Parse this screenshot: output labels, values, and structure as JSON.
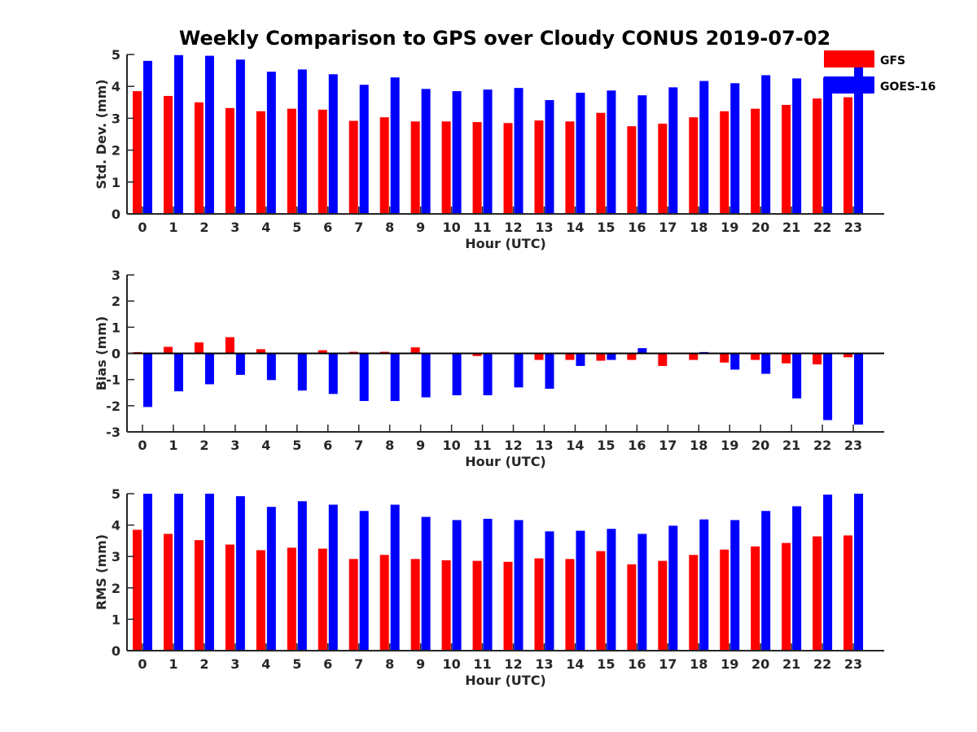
{
  "title": "Weekly Comparison to GPS over Cloudy CONUS 2019-07-02",
  "legend": [
    {
      "label": "GFS",
      "color": "#ff0000"
    },
    {
      "label": "GOES-16",
      "color": "#0000ff"
    }
  ],
  "chart_data": [
    {
      "type": "bar",
      "title": "",
      "xlabel": "Hour (UTC)",
      "ylabel": "Std. Dev. (mm)",
      "ylim": [
        0,
        5
      ],
      "yticks": [
        "0",
        "1",
        "2",
        "3",
        "4",
        "5"
      ],
      "categories": [
        "0",
        "1",
        "2",
        "3",
        "4",
        "5",
        "6",
        "7",
        "8",
        "9",
        "10",
        "11",
        "12",
        "13",
        "14",
        "15",
        "16",
        "17",
        "18",
        "19",
        "20",
        "21",
        "22",
        "23"
      ],
      "series": [
        {
          "name": "GFS",
          "color": "#ff0000",
          "values": [
            3.85,
            3.7,
            3.5,
            3.32,
            3.22,
            3.3,
            3.27,
            2.92,
            3.03,
            2.9,
            2.9,
            2.88,
            2.85,
            2.93,
            2.9,
            3.17,
            2.75,
            2.83,
            3.03,
            3.22,
            3.3,
            3.42,
            3.62,
            3.66
          ]
        },
        {
          "name": "GOES-16",
          "color": "#0000ff",
          "values": [
            4.8,
            4.98,
            4.96,
            4.84,
            4.46,
            4.53,
            4.38,
            4.05,
            4.28,
            3.92,
            3.85,
            3.9,
            3.95,
            3.57,
            3.8,
            3.87,
            3.72,
            3.97,
            4.17,
            4.1,
            4.35,
            4.25,
            4.28,
            4.62
          ]
        }
      ],
      "grid": false,
      "legend": "top-right"
    },
    {
      "type": "bar",
      "title": "",
      "xlabel": "Hour (UTC)",
      "ylabel": "Bias (mm)",
      "ylim": [
        -3,
        3
      ],
      "yticks": [
        "-3",
        "-2",
        "-1",
        "0",
        "1",
        "2",
        "3"
      ],
      "categories": [
        "0",
        "1",
        "2",
        "3",
        "4",
        "5",
        "6",
        "7",
        "8",
        "9",
        "10",
        "11",
        "12",
        "13",
        "14",
        "15",
        "16",
        "17",
        "18",
        "19",
        "20",
        "21",
        "22",
        "23"
      ],
      "series": [
        {
          "name": "GFS",
          "color": "#ff0000",
          "values": [
            0.05,
            0.25,
            0.42,
            0.62,
            0.16,
            0.03,
            0.12,
            0.06,
            0.06,
            0.23,
            0.0,
            -0.1,
            0.0,
            -0.25,
            -0.25,
            -0.28,
            -0.25,
            -0.48,
            -0.25,
            -0.35,
            -0.25,
            -0.38,
            -0.42,
            -0.15
          ]
        },
        {
          "name": "GOES-16",
          "color": "#0000ff",
          "values": [
            -2.05,
            -1.45,
            -1.18,
            -0.82,
            -1.02,
            -1.42,
            -1.55,
            -1.82,
            -1.82,
            -1.68,
            -1.6,
            -1.6,
            -1.3,
            -1.35,
            -0.48,
            -0.25,
            0.2,
            -0.03,
            0.05,
            -0.62,
            -0.78,
            -1.72,
            -2.55,
            -2.72
          ]
        }
      ],
      "grid": false
    },
    {
      "type": "bar",
      "title": "",
      "xlabel": "Hour (UTC)",
      "ylabel": "RMS (mm)",
      "ylim": [
        0,
        5
      ],
      "yticks": [
        "0",
        "1",
        "2",
        "3",
        "4",
        "5"
      ],
      "categories": [
        "0",
        "1",
        "2",
        "3",
        "4",
        "5",
        "6",
        "7",
        "8",
        "9",
        "10",
        "11",
        "12",
        "13",
        "14",
        "15",
        "16",
        "17",
        "18",
        "19",
        "20",
        "21",
        "22",
        "23"
      ],
      "series": [
        {
          "name": "GFS",
          "color": "#ff0000",
          "values": [
            3.85,
            3.72,
            3.52,
            3.38,
            3.2,
            3.28,
            3.25,
            2.92,
            3.05,
            2.92,
            2.88,
            2.86,
            2.83,
            2.94,
            2.92,
            3.17,
            2.75,
            2.86,
            3.05,
            3.22,
            3.32,
            3.43,
            3.64,
            3.67
          ]
        },
        {
          "name": "GOES-16",
          "color": "#0000ff",
          "values": [
            5.0,
            5.0,
            5.0,
            4.92,
            4.58,
            4.76,
            4.65,
            4.45,
            4.65,
            4.26,
            4.16,
            4.2,
            4.16,
            3.8,
            3.82,
            3.88,
            3.72,
            3.98,
            4.18,
            4.16,
            4.45,
            4.6,
            4.97,
            5.0
          ]
        }
      ],
      "grid": false
    }
  ]
}
